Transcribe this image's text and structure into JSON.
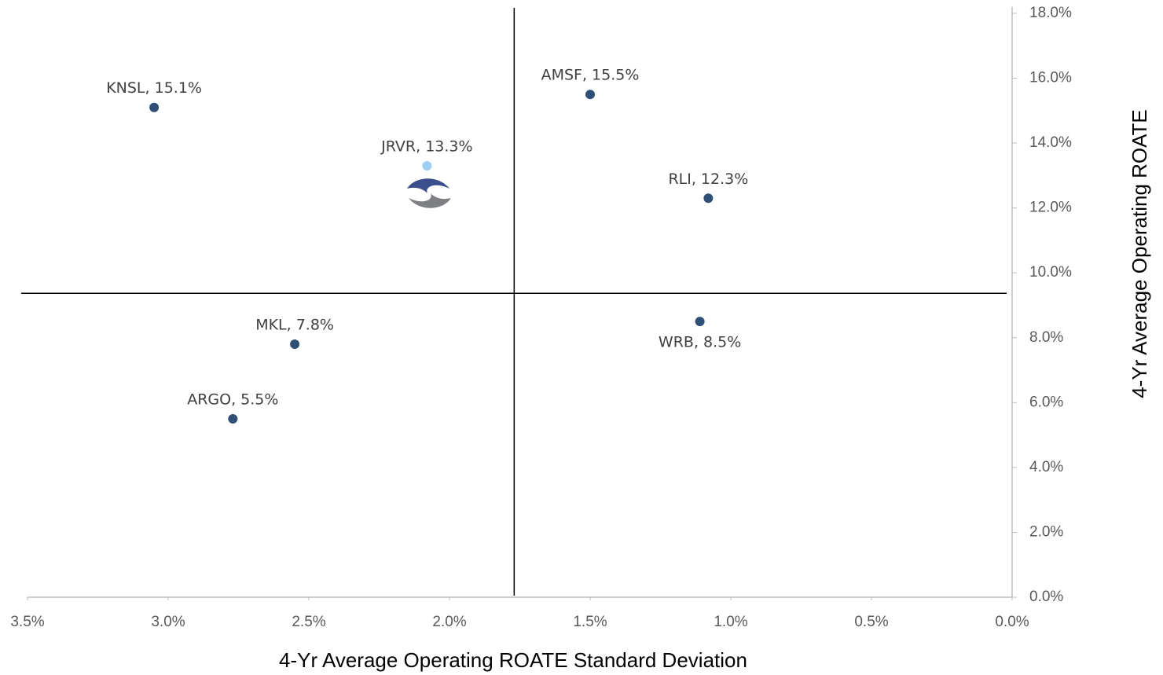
{
  "chart_data": {
    "type": "scatter",
    "x_label": "4-Yr Average Operating ROATE Standard Deviation",
    "y_label": "4-Yr Average Operating ROATE",
    "x": [
      3.05,
      1.5,
      2.08,
      1.08,
      1.11,
      2.55,
      2.77
    ],
    "values": [
      15.1,
      15.5,
      13.3,
      12.3,
      8.5,
      7.8,
      5.5
    ],
    "value_labels": [
      "KNSL, 15.1%",
      "AMSF, 15.5%",
      "JRVR, 13.3%",
      "RLI, 12.3%",
      "WRB, 8.5%",
      "MKL, 7.8%",
      "ARGO, 5.5%"
    ],
    "point_colors": [
      "#2e5077",
      "#2e5077",
      "#9dcff5",
      "#2e5077",
      "#2e5077",
      "#2e5077",
      "#2e5077"
    ],
    "label_positions": [
      "above",
      "above",
      "above",
      "above",
      "below",
      "above",
      "above"
    ],
    "xlim": [
      3.5,
      0
    ],
    "xticks": [
      {
        "value": 3.5,
        "label": "3.5%"
      },
      {
        "value": 3.0,
        "label": "3.0%"
      },
      {
        "value": 2.5,
        "label": "2.5%"
      },
      {
        "value": 2.0,
        "label": "2.0%"
      },
      {
        "value": 1.5,
        "label": "1.5%"
      },
      {
        "value": 1.0,
        "label": "1.0%"
      },
      {
        "value": 0.5,
        "label": "0.5%"
      },
      {
        "value": 0,
        "label": "0.0%"
      }
    ],
    "ylim": [
      0,
      18
    ],
    "yticks": [
      {
        "value": 0,
        "label": "0.0%"
      },
      {
        "value": 2,
        "label": "2.0%"
      },
      {
        "value": 4,
        "label": "4.0%"
      },
      {
        "value": 6,
        "label": "6.0%"
      },
      {
        "value": 8,
        "label": "8.0%"
      },
      {
        "value": 10,
        "label": "10.0%"
      },
      {
        "value": 12,
        "label": "12.0%"
      },
      {
        "value": 14,
        "label": "14.0%"
      },
      {
        "value": 16,
        "label": "16.0%"
      },
      {
        "value": 18,
        "label": "18.0%"
      }
    ],
    "x_reference": 1.77,
    "y_reference": 9.37
  }
}
